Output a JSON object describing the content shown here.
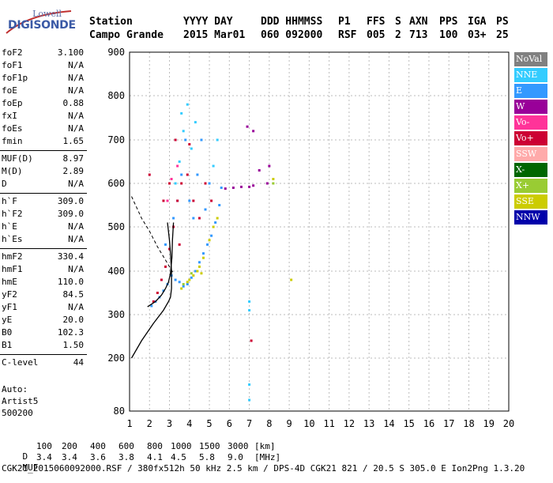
{
  "logo": {
    "brand_small": "Lowell",
    "brand_main": "DIGISONDE"
  },
  "header": {
    "row1": [
      "Station",
      "YYYY DAY",
      "DDD HHMMSS",
      "P1",
      "FFS",
      "S",
      "AXN",
      "PPS",
      "IGA",
      "PS"
    ],
    "row2": [
      "Campo Grande",
      "2015 Mar01",
      "060 092000",
      "RSF",
      "005",
      "2",
      "713",
      "100",
      "03+",
      "25"
    ]
  },
  "params": [
    {
      "key": "foF2",
      "value": "3.100"
    },
    {
      "key": "foF1",
      "value": "N/A"
    },
    {
      "key": "foF1p",
      "value": "N/A"
    },
    {
      "key": "foE",
      "value": "N/A"
    },
    {
      "key": "foEp",
      "value": "0.88"
    },
    {
      "key": "fxI",
      "value": "N/A"
    },
    {
      "key": "foEs",
      "value": "N/A"
    },
    {
      "key": "fmin",
      "value": "1.65"
    },
    {
      "key": "MUF(D)",
      "value": "8.97"
    },
    {
      "key": "M(D)",
      "value": "2.89"
    },
    {
      "key": "D",
      "value": "N/A"
    },
    {
      "key": "h`F",
      "value": "309.0"
    },
    {
      "key": "h`F2",
      "value": "309.0"
    },
    {
      "key": "h`E",
      "value": "N/A"
    },
    {
      "key": "h`Es",
      "value": "N/A"
    },
    {
      "key": "hmF2",
      "value": "330.4"
    },
    {
      "key": "hmF1",
      "value": "N/A"
    },
    {
      "key": "hmE",
      "value": "110.0"
    },
    {
      "key": "yF2",
      "value": "84.5"
    },
    {
      "key": "yF1",
      "value": "N/A"
    },
    {
      "key": "yE",
      "value": "20.0"
    },
    {
      "key": "B0",
      "value": "102.3"
    },
    {
      "key": "B1",
      "value": "1.50"
    },
    {
      "key": "C-level",
      "value": "44"
    }
  ],
  "auto": {
    "line1": "Auto:",
    "line2": "Artist5",
    "line3": "500200"
  },
  "legend": [
    {
      "label": "NoVal",
      "color": "#808080"
    },
    {
      "label": "NNE",
      "color": "#33ccff"
    },
    {
      "label": "E",
      "color": "#3399ff"
    },
    {
      "label": "W",
      "color": "#990099"
    },
    {
      "label": "Vo-",
      "color": "#ff3399"
    },
    {
      "label": "Vo+",
      "color": "#cc0033"
    },
    {
      "label": "SSW",
      "color": "#ffaaaa"
    },
    {
      "label": "X-",
      "color": "#006600"
    },
    {
      "label": "X+",
      "color": "#99cc33"
    },
    {
      "label": "SSE",
      "color": "#cccc00"
    },
    {
      "label": "NNW",
      "color": "#0000aa"
    }
  ],
  "footer": {
    "row1_label": "D",
    "row1_values": [
      "100",
      "200",
      "400",
      "600",
      "800",
      "1000",
      "1500",
      "3000",
      "[km]"
    ],
    "row2_label": "MUF",
    "row2_values": [
      "3.4",
      "3.4",
      "3.6",
      "3.8",
      "4.1",
      "4.5",
      "5.8",
      "9.0",
      "[MHz]"
    ],
    "row3": "CGK21_2015060092000.RSF / 380fx512h 50 kHz 2.5 km / DPS-4D CGK21 821 / 20.5 S 305.0 E Ion2Png 1.3.20"
  },
  "chart_data": {
    "type": "scatter",
    "xlim": [
      1,
      20
    ],
    "ylim": [
      80,
      900
    ],
    "x_ticks": [
      1,
      2,
      3,
      4,
      5,
      6,
      7,
      8,
      9,
      10,
      11,
      12,
      13,
      14,
      15,
      16,
      17,
      18,
      19,
      20
    ],
    "y_ticks": [
      80,
      200,
      300,
      400,
      500,
      600,
      700,
      800,
      900
    ],
    "grid": true,
    "series": [
      {
        "name": "E",
        "color": "#3399ff",
        "points": [
          [
            2.1,
            320
          ],
          [
            2.3,
            330
          ],
          [
            2.5,
            340
          ],
          [
            2.7,
            355
          ],
          [
            2.9,
            370
          ],
          [
            3.1,
            390
          ],
          [
            3.3,
            380
          ],
          [
            3.5,
            375
          ],
          [
            3.7,
            365
          ],
          [
            3.9,
            370
          ],
          [
            4.1,
            385
          ],
          [
            4.3,
            400
          ],
          [
            4.5,
            420
          ],
          [
            4.7,
            440
          ],
          [
            4.9,
            460
          ],
          [
            5.1,
            480
          ],
          [
            5.3,
            510
          ],
          [
            5.5,
            550
          ],
          [
            5.6,
            590
          ],
          [
            3.4,
            560
          ],
          [
            3.6,
            620
          ],
          [
            4.0,
            560
          ],
          [
            4.4,
            620
          ],
          [
            3.8,
            700
          ],
          [
            5.0,
            600
          ],
          [
            4.2,
            520
          ],
          [
            4.6,
            700
          ],
          [
            2.8,
            460
          ],
          [
            3.2,
            520
          ],
          [
            4.8,
            540
          ]
        ]
      },
      {
        "name": "NNE",
        "color": "#33ccff",
        "points": [
          [
            3.5,
            650
          ],
          [
            3.7,
            720
          ],
          [
            3.9,
            780
          ],
          [
            4.1,
            680
          ],
          [
            4.3,
            740
          ],
          [
            5.2,
            640
          ],
          [
            5.4,
            700
          ],
          [
            3.3,
            600
          ],
          [
            3.6,
            760
          ],
          [
            7.0,
            330
          ],
          [
            7.0,
            310
          ],
          [
            7.0,
            140
          ],
          [
            7.0,
            105
          ]
        ]
      },
      {
        "name": "SSE",
        "color": "#cccc00",
        "points": [
          [
            3.6,
            360
          ],
          [
            3.9,
            375
          ],
          [
            4.2,
            390
          ],
          [
            4.5,
            410
          ],
          [
            4.7,
            430
          ],
          [
            5.0,
            470
          ],
          [
            5.2,
            500
          ],
          [
            5.4,
            520
          ],
          [
            4.0,
            380
          ],
          [
            4.4,
            400
          ],
          [
            8.2,
            610
          ],
          [
            9.1,
            380
          ],
          [
            4.6,
            395
          ]
        ]
      },
      {
        "name": "Vo+",
        "color": "#cc0033",
        "points": [
          [
            2.2,
            330
          ],
          [
            2.4,
            350
          ],
          [
            2.6,
            380
          ],
          [
            2.8,
            410
          ],
          [
            3.0,
            450
          ],
          [
            3.2,
            500
          ],
          [
            3.4,
            560
          ],
          [
            3.6,
            600
          ],
          [
            3.9,
            620
          ],
          [
            4.2,
            560
          ],
          [
            4.5,
            520
          ],
          [
            4.8,
            600
          ],
          [
            5.1,
            560
          ],
          [
            2.0,
            620
          ],
          [
            3.3,
            700
          ],
          [
            2.7,
            560
          ],
          [
            3.0,
            600
          ],
          [
            4.0,
            690
          ],
          [
            3.5,
            460
          ],
          [
            7.1,
            240
          ]
        ]
      },
      {
        "name": "W",
        "color": "#990099",
        "points": [
          [
            5.8,
            588
          ],
          [
            6.2,
            590
          ],
          [
            6.6,
            592
          ],
          [
            7.0,
            592
          ],
          [
            7.2,
            595
          ],
          [
            7.9,
            600
          ],
          [
            8.0,
            640
          ],
          [
            6.9,
            730
          ],
          [
            7.2,
            720
          ],
          [
            7.5,
            630
          ]
        ]
      },
      {
        "name": "Vo-",
        "color": "#ff3399",
        "points": [
          [
            3.1,
            610
          ],
          [
            3.4,
            640
          ],
          [
            2.9,
            560
          ]
        ]
      },
      {
        "name": "X+",
        "color": "#99cc33",
        "points": [
          [
            3.7,
            370
          ],
          [
            4.1,
            395
          ],
          [
            8.2,
            600
          ]
        ]
      }
    ],
    "profile_curve": [
      [
        1.1,
        200
      ],
      [
        1.6,
        240
      ],
      [
        2.2,
        280
      ],
      [
        2.7,
        310
      ],
      [
        2.95,
        330
      ],
      [
        3.05,
        340
      ],
      [
        3.1,
        360
      ],
      [
        3.1,
        400
      ],
      [
        3.05,
        440
      ],
      [
        3.0,
        470
      ],
      [
        2.9,
        510
      ]
    ],
    "trace_curve": [
      [
        1.9,
        318
      ],
      [
        2.3,
        330
      ],
      [
        2.6,
        345
      ],
      [
        2.8,
        360
      ],
      [
        2.95,
        375
      ],
      [
        3.05,
        395
      ],
      [
        3.12,
        430
      ],
      [
        3.15,
        470
      ],
      [
        3.2,
        510
      ]
    ],
    "dashed_curve": [
      [
        1.1,
        570
      ],
      [
        1.6,
        520
      ],
      [
        2.0,
        490
      ],
      [
        2.4,
        455
      ],
      [
        2.8,
        425
      ],
      [
        3.2,
        395
      ]
    ]
  }
}
